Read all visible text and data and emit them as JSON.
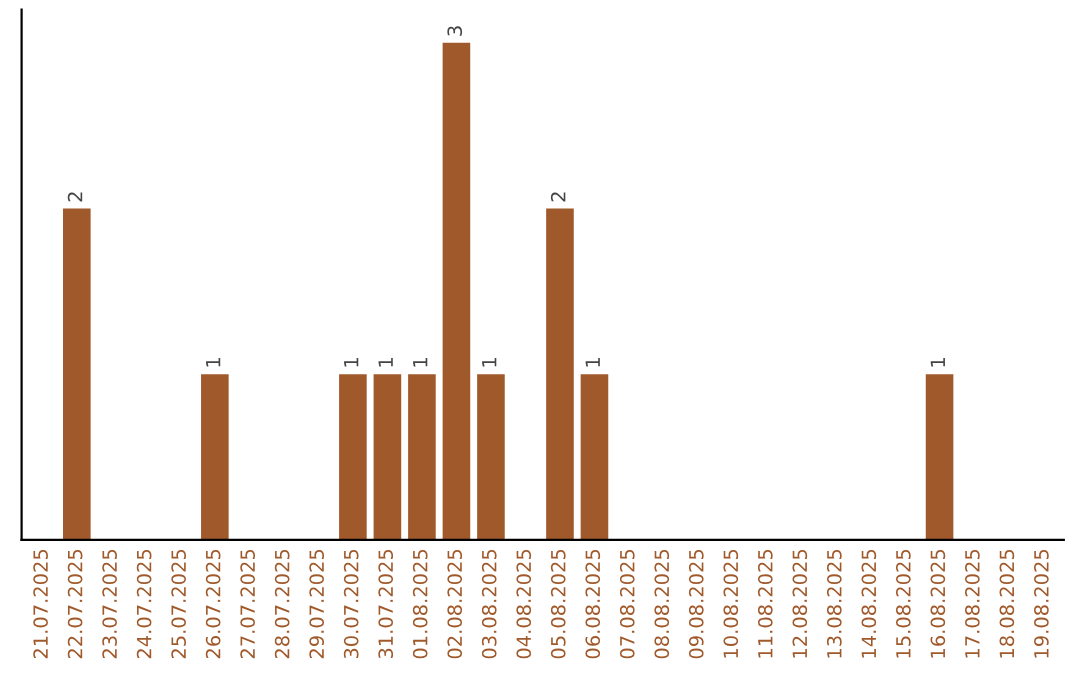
{
  "chart_data": {
    "type": "bar",
    "categories": [
      "21.07.2025",
      "22.07.2025",
      "23.07.2025",
      "24.07.2025",
      "25.07.2025",
      "26.07.2025",
      "27.07.2025",
      "28.07.2025",
      "29.07.2025",
      "30.07.2025",
      "31.07.2025",
      "01.08.2025",
      "02.08.2025",
      "03.08.2025",
      "04.08.2025",
      "05.08.2025",
      "06.08.2025",
      "07.08.2025",
      "08.08.2025",
      "09.08.2025",
      "10.08.2025",
      "11.08.2025",
      "12.08.2025",
      "13.08.2025",
      "14.08.2025",
      "15.08.2025",
      "16.08.2025",
      "17.08.2025",
      "18.08.2025",
      "19.08.2025"
    ],
    "values": [
      0,
      2,
      0,
      0,
      0,
      1,
      0,
      0,
      0,
      1,
      1,
      1,
      3,
      1,
      0,
      2,
      1,
      0,
      0,
      0,
      0,
      0,
      0,
      0,
      0,
      0,
      1,
      0,
      0,
      0
    ],
    "value_labels": [
      null,
      "2",
      null,
      null,
      null,
      "1",
      null,
      null,
      null,
      "1",
      "1",
      "1",
      "3",
      "1",
      null,
      "2",
      "1",
      null,
      null,
      null,
      null,
      null,
      null,
      null,
      null,
      null,
      "1",
      null,
      null,
      null
    ],
    "color": "#a0592a",
    "ylim": [
      0,
      3.2
    ],
    "tick_labels": "x",
    "grid": false
  }
}
